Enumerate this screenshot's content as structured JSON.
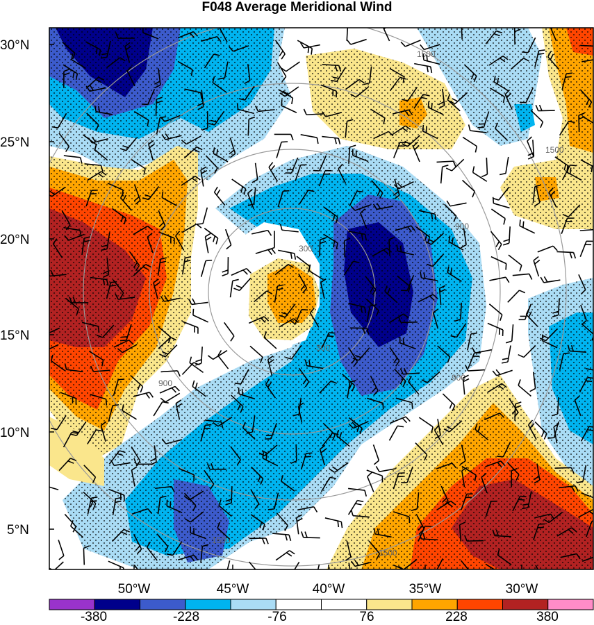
{
  "title": "F048 Average Meridional Wind",
  "lat_labels": [
    "30°N",
    "25°N",
    "20°N",
    "15°N",
    "10°N",
    "5°N"
  ],
  "lon_labels": [
    "50°W",
    "45°W",
    "40°W",
    "35°W",
    "30°W"
  ],
  "colorbar": {
    "colors": [
      "#9933cc",
      "#00008b",
      "#3c5bcc",
      "#00b4f0",
      "#aadcf5",
      "#ffffff",
      "#ffffff",
      "#fae68c",
      "#ffa500",
      "#ff4500",
      "#b22222",
      "#ff8cc8"
    ],
    "labels": [
      "-380",
      "-228",
      "-76",
      "76",
      "228",
      "380"
    ]
  },
  "range_rings": {
    "labels": [
      "300",
      "900",
      "1500"
    ]
  }
}
